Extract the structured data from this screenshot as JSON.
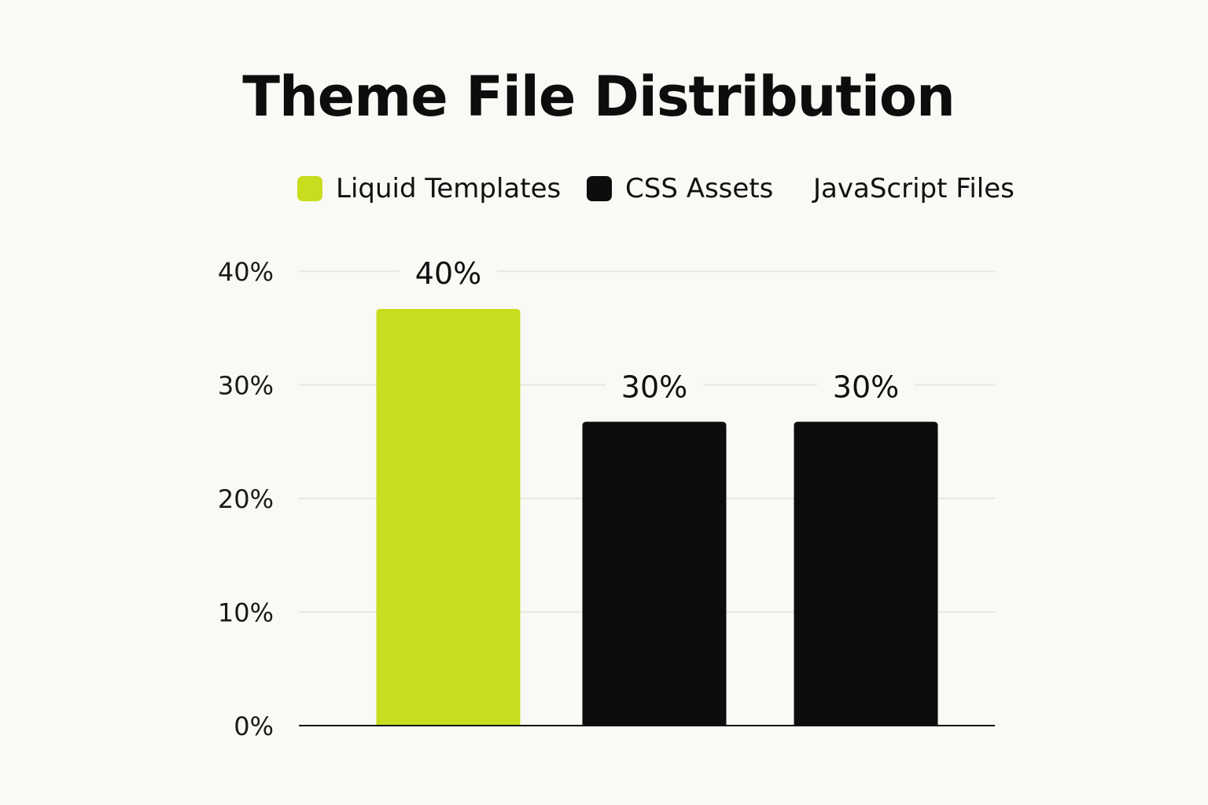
{
  "chart_data": {
    "type": "bar",
    "title": "Theme File Distribution",
    "xlabel": "",
    "ylabel": "",
    "categories": [
      "Liquid Templates",
      "CSS Assets",
      "JavaScript Files"
    ],
    "values": [
      40,
      30,
      30
    ],
    "value_labels": [
      "40%",
      "30%",
      "30%"
    ],
    "bar_colors": [
      "#c8dd1e",
      "#0d0d0d",
      "#0d0d0d"
    ],
    "ylim": [
      0,
      40
    ],
    "yticks": [
      0,
      10,
      20,
      30,
      40
    ],
    "ytick_labels": [
      "0%",
      "10%",
      "20%",
      "30%",
      "40%"
    ],
    "grid": true,
    "legend": {
      "placement": "top",
      "items": [
        {
          "label": "Liquid Templates",
          "color": "#c8dd1e"
        },
        {
          "label": "CSS Assets",
          "color": "#0d0d0d"
        },
        {
          "label": "JavaScript Files",
          "color": ""
        }
      ]
    }
  }
}
